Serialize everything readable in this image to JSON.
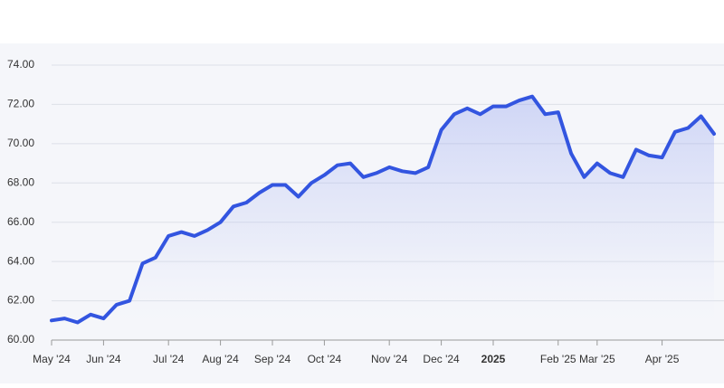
{
  "chart_data": {
    "type": "line",
    "categories": [
      "May '24",
      null,
      null,
      null,
      "Jun '24",
      null,
      null,
      null,
      null,
      "Jul '24",
      null,
      null,
      null,
      "Aug '24",
      null,
      null,
      null,
      "Sep '24",
      null,
      null,
      null,
      "Oct '24",
      null,
      null,
      null,
      null,
      "Nov '24",
      null,
      null,
      null,
      "Dec '24",
      null,
      null,
      null,
      "2025",
      null,
      null,
      null,
      null,
      "Feb '25",
      null,
      null,
      "Mar '25",
      null,
      null,
      null,
      null,
      "Apr '25",
      null,
      null,
      null,
      null
    ],
    "series": [
      {
        "color": "#3355e0",
        "values": [
          61.0,
          61.1,
          60.9,
          61.3,
          61.1,
          61.8,
          62.0,
          63.9,
          64.2,
          65.3,
          65.5,
          65.3,
          65.6,
          66.0,
          66.8,
          67.0,
          67.5,
          67.9,
          67.9,
          67.3,
          68.0,
          68.4,
          68.9,
          69.0,
          68.3,
          68.5,
          68.8,
          68.6,
          68.5,
          68.8,
          70.7,
          71.5,
          71.8,
          71.5,
          71.9,
          71.9,
          72.2,
          72.4,
          71.5,
          71.6,
          69.5,
          68.3,
          69.0,
          68.5,
          68.3,
          69.7,
          69.4,
          69.3,
          70.6,
          70.8,
          71.4,
          70.5
        ]
      }
    ],
    "ylim": [
      60,
      74
    ],
    "yticks": [
      {
        "value": 60,
        "label": "60.00"
      },
      {
        "value": 62,
        "label": "62.00"
      },
      {
        "value": 64,
        "label": "64.00"
      },
      {
        "value": 66,
        "label": "66.00"
      },
      {
        "value": 68,
        "label": "68.00"
      },
      {
        "value": 70,
        "label": "70.00"
      },
      {
        "value": 72,
        "label": "72.00"
      },
      {
        "value": 74,
        "label": "74.00"
      }
    ],
    "grid": true
  }
}
